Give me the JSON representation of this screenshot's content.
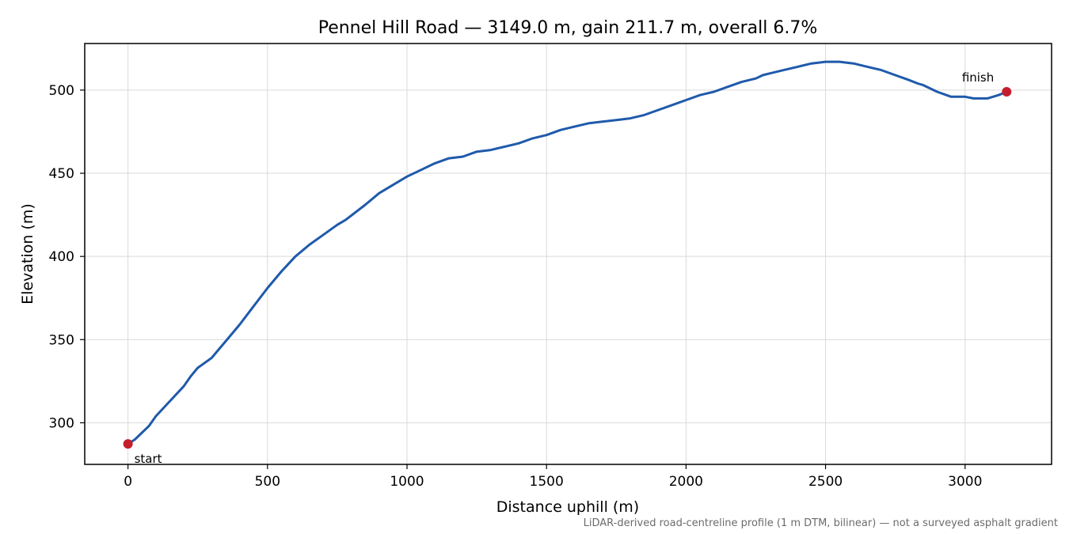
{
  "chart_data": {
    "type": "line",
    "title": "Pennel Hill Road — 3149.0 m, gain 211.7 m, overall 6.7%",
    "xlabel": "Distance uphill (m)",
    "ylabel": "Elevation (m)",
    "xlim": [
      -155,
      3310
    ],
    "ylim": [
      275,
      528
    ],
    "xticks": [
      0,
      500,
      1000,
      1500,
      2000,
      2500,
      3000
    ],
    "yticks": [
      300,
      350,
      400,
      450,
      500
    ],
    "grid": true,
    "line_color": "#1f5aab",
    "marker_color": "#c41e2e",
    "series": [
      {
        "x": [
          0,
          25,
          50,
          75,
          100,
          150,
          200,
          225,
          250,
          300,
          325,
          350,
          400,
          450,
          500,
          550,
          600,
          650,
          700,
          750,
          780,
          850,
          900,
          950,
          1000,
          1050,
          1100,
          1150,
          1200,
          1250,
          1300,
          1350,
          1400,
          1450,
          1500,
          1550,
          1600,
          1650,
          1700,
          1750,
          1800,
          1850,
          1900,
          1950,
          2000,
          2050,
          2100,
          2150,
          2200,
          2225,
          2250,
          2275,
          2300,
          2350,
          2400,
          2450,
          2500,
          2550,
          2600,
          2650,
          2700,
          2750,
          2800,
          2830,
          2850,
          2900,
          2950,
          3000,
          3030,
          3050,
          3080,
          3100,
          3120,
          3135,
          3149
        ],
        "y": [
          287.3,
          290,
          294,
          298,
          304,
          313,
          322,
          328,
          333,
          339,
          344,
          349,
          359,
          370,
          381,
          391,
          400,
          407,
          413,
          419,
          422,
          431,
          438,
          443,
          448,
          452,
          456,
          459,
          460,
          463,
          464,
          466,
          468,
          471,
          473,
          476,
          478,
          480,
          481,
          482,
          483,
          485,
          488,
          491,
          494,
          497,
          499,
          502,
          505,
          506,
          507,
          509,
          510,
          512,
          514,
          516,
          517,
          517,
          516,
          514,
          512,
          509,
          506,
          504,
          503,
          499,
          496,
          496,
          495,
          495,
          495,
          496,
          497,
          498,
          499
        ]
      }
    ],
    "annotations": [
      {
        "text": "start",
        "x": 0,
        "y": 287.3
      },
      {
        "text": "finish",
        "x": 3149,
        "y": 499
      }
    ],
    "footnote": "LiDAR-derived road-centreline profile (1 m DTM, bilinear) — not a surveyed asphalt gradient"
  }
}
